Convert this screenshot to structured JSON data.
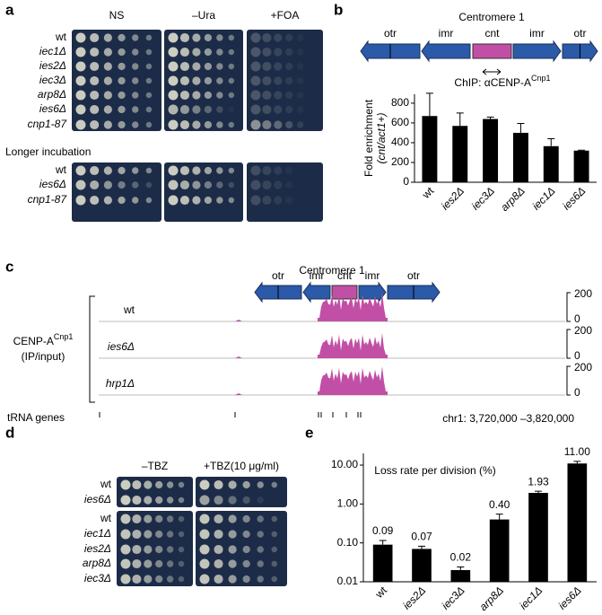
{
  "panels": {
    "a": {
      "label": "a",
      "conditions": [
        "NS",
        "–Ura",
        "+FOA"
      ],
      "strains": [
        "wt",
        "iec1Δ",
        "ies2Δ",
        "iec3Δ",
        "arp8Δ",
        "ies6Δ",
        "cnp1-87"
      ],
      "longer_incubation": {
        "title": "Longer incubation",
        "strains": [
          "wt",
          "ies6Δ",
          "cnp1-87"
        ]
      }
    },
    "b": {
      "label": "b",
      "diagram": {
        "title": "Centromere 1",
        "regions": [
          "otr",
          "imr",
          "cnt",
          "imr",
          "otr"
        ]
      }
    },
    "c": {
      "label": "c",
      "diagram": {
        "title": "Centromere 1",
        "regions": [
          "otr",
          "imr",
          "cnt",
          "imr",
          "otr"
        ]
      },
      "track_label": {
        "text": "CENP-A",
        "superscript": "Cnp1",
        "line2": "(IP/input)"
      },
      "tracks": [
        {
          "name": "wt",
          "scale": [
            200,
            0
          ]
        },
        {
          "name": "ies6Δ",
          "scale": [
            200,
            0
          ]
        },
        {
          "name": "hrp1Δ",
          "scale": [
            200,
            0
          ]
        }
      ],
      "trna_label": "tRNA genes",
      "coordinates": "chr1: 3,720,000 –3,820,000"
    },
    "d": {
      "label": "d",
      "conditions": [
        "–TBZ",
        "+TBZ(10 μg/ml)"
      ],
      "strains_top": [
        "wt",
        "ies6Δ"
      ],
      "strains_bottom": [
        "wt",
        "iec1Δ",
        "ies2Δ",
        "arp8Δ",
        "iec3Δ"
      ]
    },
    "e": {
      "label": "e"
    }
  },
  "chart_data": [
    {
      "type": "bar",
      "title": "ChIP: αCENP-A",
      "title_superscript": "Cnp1",
      "ylabel": [
        "Fold enrichment",
        "(cnt/act1+)"
      ],
      "categories": [
        "wt",
        "ies2Δ",
        "iec3Δ",
        "arp8Δ",
        "iec1Δ",
        "ies6Δ"
      ],
      "values": [
        670,
        570,
        640,
        500,
        365,
        320
      ],
      "errors": [
        230,
        130,
        20,
        95,
        75,
        5
      ],
      "color": "#000000",
      "ylim": [
        0,
        890
      ],
      "yticks": [
        0,
        200,
        400,
        600,
        800
      ]
    },
    {
      "type": "bar",
      "title": "Loss rate per division (%)",
      "log": true,
      "categories": [
        "wt",
        "ies2Δ",
        "iec3Δ",
        "arp8Δ",
        "iec1Δ",
        "ies6Δ"
      ],
      "values": [
        0.09,
        0.07,
        0.02,
        0.4,
        1.93,
        11.0
      ],
      "value_labels": [
        "0.09",
        "0.07",
        "0.02",
        "0.40",
        "1.93",
        "11.00"
      ],
      "errors": [
        0.025,
        0.012,
        0.004,
        0.15,
        0.2,
        1.5
      ],
      "color": "#000000",
      "ylim": [
        0.01,
        20
      ],
      "yticks": [
        {
          "value": 0.01,
          "label": "0.01"
        },
        {
          "value": 0.1,
          "label": "0.10"
        },
        {
          "value": 1,
          "label": "1.00"
        },
        {
          "value": 10,
          "label": "10.00"
        }
      ]
    }
  ]
}
